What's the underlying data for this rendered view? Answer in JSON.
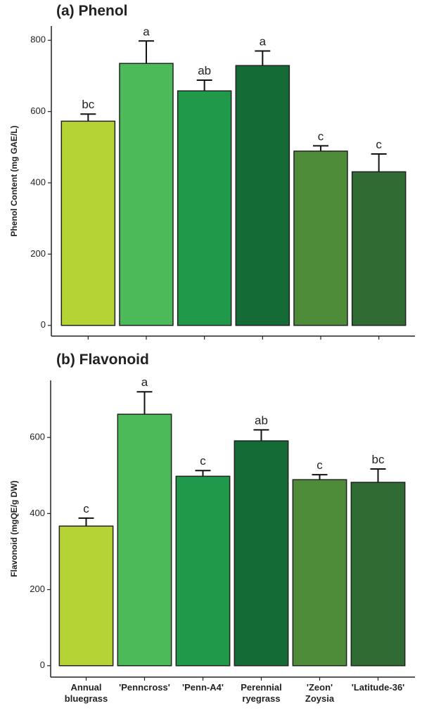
{
  "chart_data": [
    {
      "type": "bar",
      "title": "(a) Phenol",
      "y_label": "Phenol Content (mg GAE/L)",
      "categories": [
        null,
        null,
        null,
        null,
        null,
        null
      ],
      "values": [
        573,
        735,
        658,
        729,
        489,
        431
      ],
      "errors": [
        20,
        63,
        30,
        41,
        15,
        50
      ],
      "letters": [
        "bc",
        "a",
        "ab",
        "a",
        "c",
        "c"
      ],
      "colors": [
        "#b5d334",
        "#4cba58",
        "#20994a",
        "#146b35",
        "#4e8c3a",
        "#2f6b32"
      ],
      "ylim": [
        -30,
        840
      ],
      "yticks": [
        0,
        200,
        400,
        600,
        800
      ]
    },
    {
      "type": "bar",
      "title": "(b) Flavonoid",
      "y_label": "Flavonoid (mgQE/g DW)",
      "categories": [
        "Annual bluegrass",
        "'Penncross'",
        "'Penn-A4'",
        "Perennial ryegrass",
        "'Zeon' Zoysia",
        "'Latitude-36'"
      ],
      "values": [
        367,
        661,
        498,
        591,
        489,
        482
      ],
      "errors": [
        21,
        59,
        15,
        29,
        13,
        35
      ],
      "letters": [
        "c",
        "a",
        "c",
        "ab",
        "c",
        "bc"
      ],
      "colors": [
        "#b5d334",
        "#4cba58",
        "#20994a",
        "#146b35",
        "#4e8c3a",
        "#2f6b32"
      ],
      "ylim": [
        -30,
        750
      ],
      "yticks": [
        0,
        200,
        400,
        600
      ]
    }
  ]
}
